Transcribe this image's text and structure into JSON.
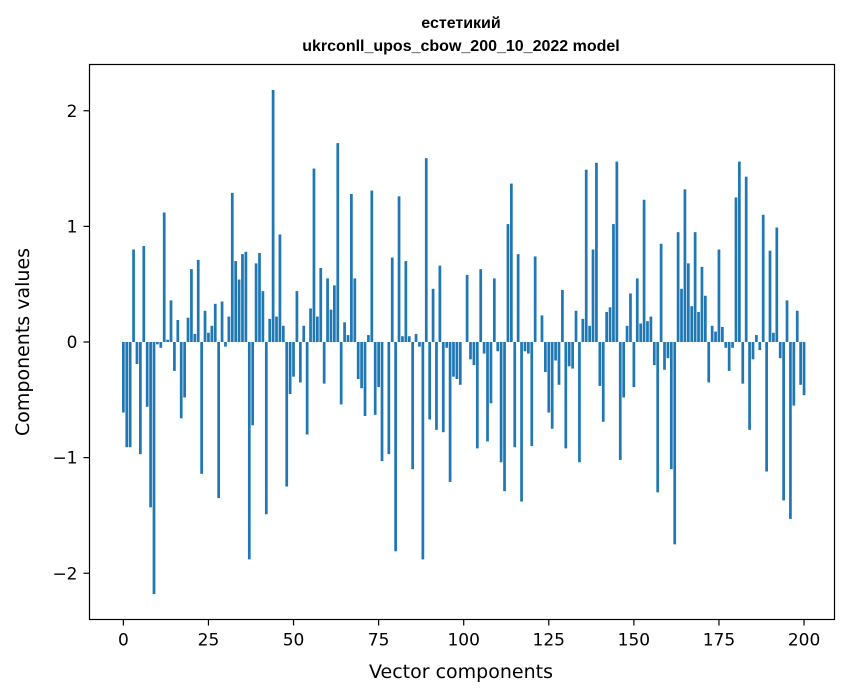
{
  "chart_data": {
    "type": "bar",
    "title_line1": "естетикий",
    "title_line2": "ukrconll_upos_cbow_200_10_2022 model",
    "xlabel": "Vector components",
    "ylabel": "Components values",
    "xlim": [
      -9.95,
      208.95
    ],
    "ylim": [
      -2.4,
      2.4
    ],
    "xticks": [
      0,
      25,
      50,
      75,
      100,
      125,
      150,
      175,
      200
    ],
    "yticks": [
      -2,
      -1,
      0,
      1,
      2
    ],
    "ytick_labels": [
      "−2",
      "−1",
      "0",
      "1",
      "2"
    ],
    "bar_color": "#1f77b4",
    "values": [
      -0.61,
      -0.91,
      -0.91,
      0.8,
      -0.19,
      -0.97,
      0.83,
      -0.56,
      -1.43,
      -2.18,
      -0.02,
      -0.05,
      1.12,
      0.02,
      0.36,
      -0.25,
      0.19,
      -0.66,
      -0.48,
      0.21,
      0.63,
      0.07,
      0.71,
      -1.14,
      0.27,
      0.08,
      0.14,
      0.33,
      -1.35,
      0.35,
      -0.04,
      0.22,
      1.29,
      0.7,
      0.54,
      0.76,
      0.78,
      -1.88,
      -0.72,
      0.68,
      0.77,
      0.44,
      -1.49,
      0.2,
      2.18,
      0.22,
      0.93,
      0.14,
      -1.25,
      -0.45,
      -0.3,
      0.44,
      -0.35,
      0.14,
      -0.8,
      0.29,
      1.5,
      0.22,
      0.64,
      -0.36,
      0.55,
      0.28,
      0.49,
      1.72,
      -0.54,
      0.17,
      0.06,
      1.28,
      0.55,
      -0.32,
      -0.4,
      -0.64,
      0.06,
      1.31,
      -0.63,
      -0.39,
      -1.03,
      0.0,
      -0.97,
      0.73,
      -1.81,
      1.26,
      0.05,
      0.7,
      0.05,
      -1.1,
      0.07,
      -0.04,
      -1.88,
      1.59,
      -0.67,
      0.46,
      -0.76,
      0.66,
      -0.78,
      -0.05,
      -1.21,
      -0.3,
      -0.32,
      -0.37,
      0.0,
      0.58,
      -0.15,
      -0.2,
      -0.92,
      0.63,
      -0.1,
      -0.86,
      -0.53,
      0.55,
      -0.08,
      -1.04,
      -1.29,
      1.02,
      1.37,
      -0.91,
      0.76,
      -1.38,
      -0.08,
      -0.1,
      -0.9,
      0.74,
      0.0,
      0.23,
      -0.26,
      -0.61,
      -0.75,
      -0.16,
      -0.37,
      0.45,
      -0.92,
      -0.21,
      -0.23,
      0.27,
      -1.04,
      0.2,
      1.49,
      0.14,
      0.8,
      1.55,
      -0.38,
      -0.69,
      0.26,
      0.3,
      1.02,
      1.56,
      -1.02,
      -0.48,
      0.14,
      0.42,
      -0.39,
      0.55,
      0.16,
      1.23,
      0.18,
      0.22,
      -0.2,
      -1.3,
      0.85,
      -0.24,
      -0.14,
      -1.1,
      -1.75,
      0.95,
      0.46,
      1.32,
      0.68,
      0.31,
      0.95,
      0.26,
      0.65,
      0.4,
      -0.35,
      0.14,
      0.09,
      0.8,
      0.13,
      -0.05,
      -0.25,
      -0.05,
      1.25,
      1.56,
      -0.36,
      1.43,
      -0.76,
      -0.15,
      0.06,
      -0.07,
      1.1,
      -1.12,
      0.79,
      0.08,
      0.99,
      -0.14,
      -1.37,
      0.36,
      -1.53,
      -0.55,
      0.27,
      -0.37,
      -0.46
    ]
  }
}
